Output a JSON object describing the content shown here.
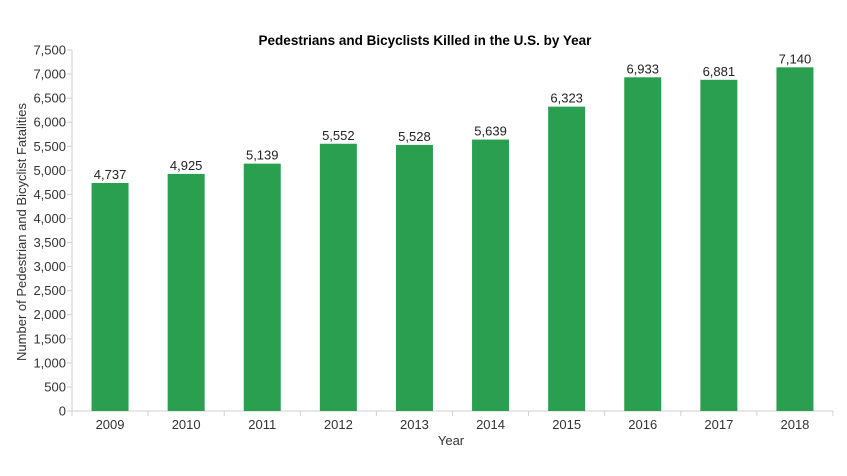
{
  "chart_data": {
    "type": "bar",
    "title": "Pedestrians and Bicyclists Killed in the U.S. by Year",
    "xlabel": "Year",
    "ylabel": "Number of Pedestrian and Bicyclist Fatalities",
    "categories": [
      "2009",
      "2010",
      "2011",
      "2012",
      "2013",
      "2014",
      "2015",
      "2016",
      "2017",
      "2018"
    ],
    "values": [
      4737,
      4925,
      5139,
      5552,
      5528,
      5639,
      6323,
      6933,
      6881,
      7140
    ],
    "value_labels": [
      "4,737",
      "4,925",
      "5,139",
      "5,552",
      "5,528",
      "5,639",
      "6,323",
      "6,933",
      "6,881",
      "7,140"
    ],
    "ylim": [
      0,
      7500
    ],
    "yticks": [
      0,
      500,
      1000,
      1500,
      2000,
      2500,
      3000,
      3500,
      4000,
      4500,
      5000,
      5500,
      6000,
      6500,
      7000,
      7500
    ],
    "ytick_labels": [
      "0",
      "500",
      "1,000",
      "1,500",
      "2,000",
      "2,500",
      "3,000",
      "3,500",
      "4,000",
      "4,500",
      "5,000",
      "5,500",
      "6,000",
      "6,500",
      "7,000",
      "7,500"
    ],
    "bar_color": "#2a9f4f",
    "grid": false,
    "legend": "none"
  }
}
